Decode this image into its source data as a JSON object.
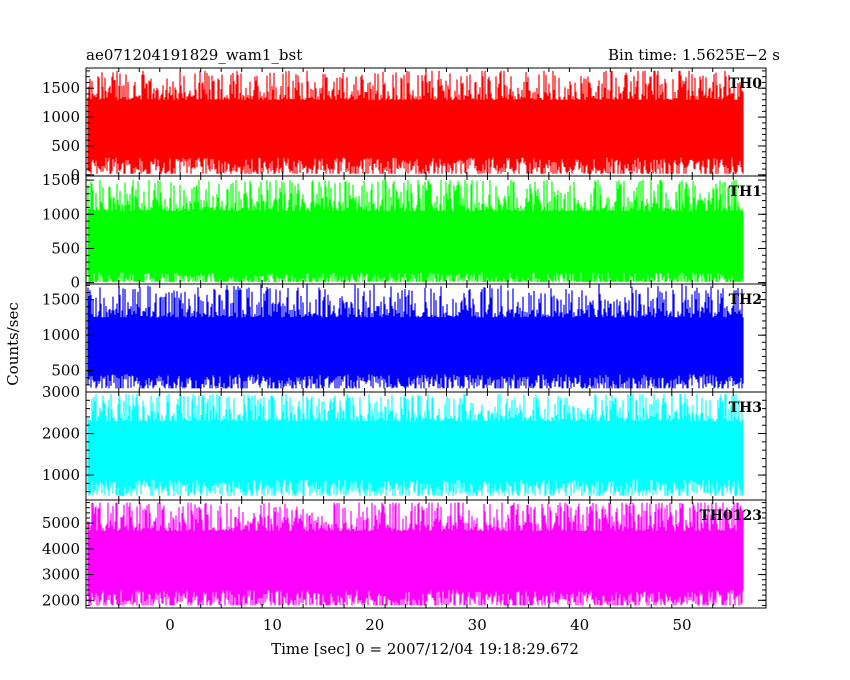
{
  "header": {
    "title": "ae071204191829_wam1_bst",
    "bin_time": "Bin time: 1.5625E−2 s"
  },
  "axes": {
    "ylabel": "Counts/sec",
    "xlabel": "Time [sec] 0 = 2007/12/04 19:18:29.672"
  },
  "chart_data": {
    "type": "line",
    "title": "ae071204191829_wam1_bst",
    "subtitle": "Bin time: 1.5625E−2 s",
    "xlabel": "Time [sec] 0 = 2007/12/04 19:18:29.672",
    "ylabel": "Counts/sec",
    "xlim": [
      -8.2,
      58.2
    ],
    "x_ticks": [
      0,
      10,
      20,
      30,
      40,
      50
    ],
    "x_data_range": [
      -8.0,
      56.0
    ],
    "bin_time_s": 0.015625,
    "grid": false,
    "legend": "none",
    "panels": [
      {
        "name": "TH0",
        "color": "#ff0000",
        "ylim": [
          -20,
          1850
        ],
        "y_ticks": [
          0,
          500,
          1000,
          1500
        ],
        "typical_low": 300,
        "typical_high": 1300,
        "min_value": 20,
        "max_value": 1800
      },
      {
        "name": "TH1",
        "color": "#00ff00",
        "ylim": [
          -20,
          1560
        ],
        "y_ticks": [
          0,
          500,
          1000,
          1500
        ],
        "typical_low": 150,
        "typical_high": 1050,
        "min_value": 10,
        "max_value": 1500
      },
      {
        "name": "TH2",
        "color": "#0000ff",
        "ylim": [
          200,
          1720
        ],
        "y_ticks": [
          500,
          1000,
          1500
        ],
        "typical_low": 450,
        "typical_high": 1250,
        "min_value": 250,
        "max_value": 1720
      },
      {
        "name": "TH3",
        "color": "#00ffff",
        "ylim": [
          400,
          3000
        ],
        "y_ticks": [
          1000,
          2000,
          3000
        ],
        "typical_low": 900,
        "typical_high": 2300,
        "min_value": 500,
        "max_value": 2950
      },
      {
        "name": "TH0123",
        "color": "#ff00ff",
        "ylim": [
          1700,
          5900
        ],
        "y_ticks": [
          2000,
          3000,
          4000,
          5000
        ],
        "typical_low": 2400,
        "typical_high": 4700,
        "min_value": 1800,
        "max_value": 5800
      }
    ]
  }
}
